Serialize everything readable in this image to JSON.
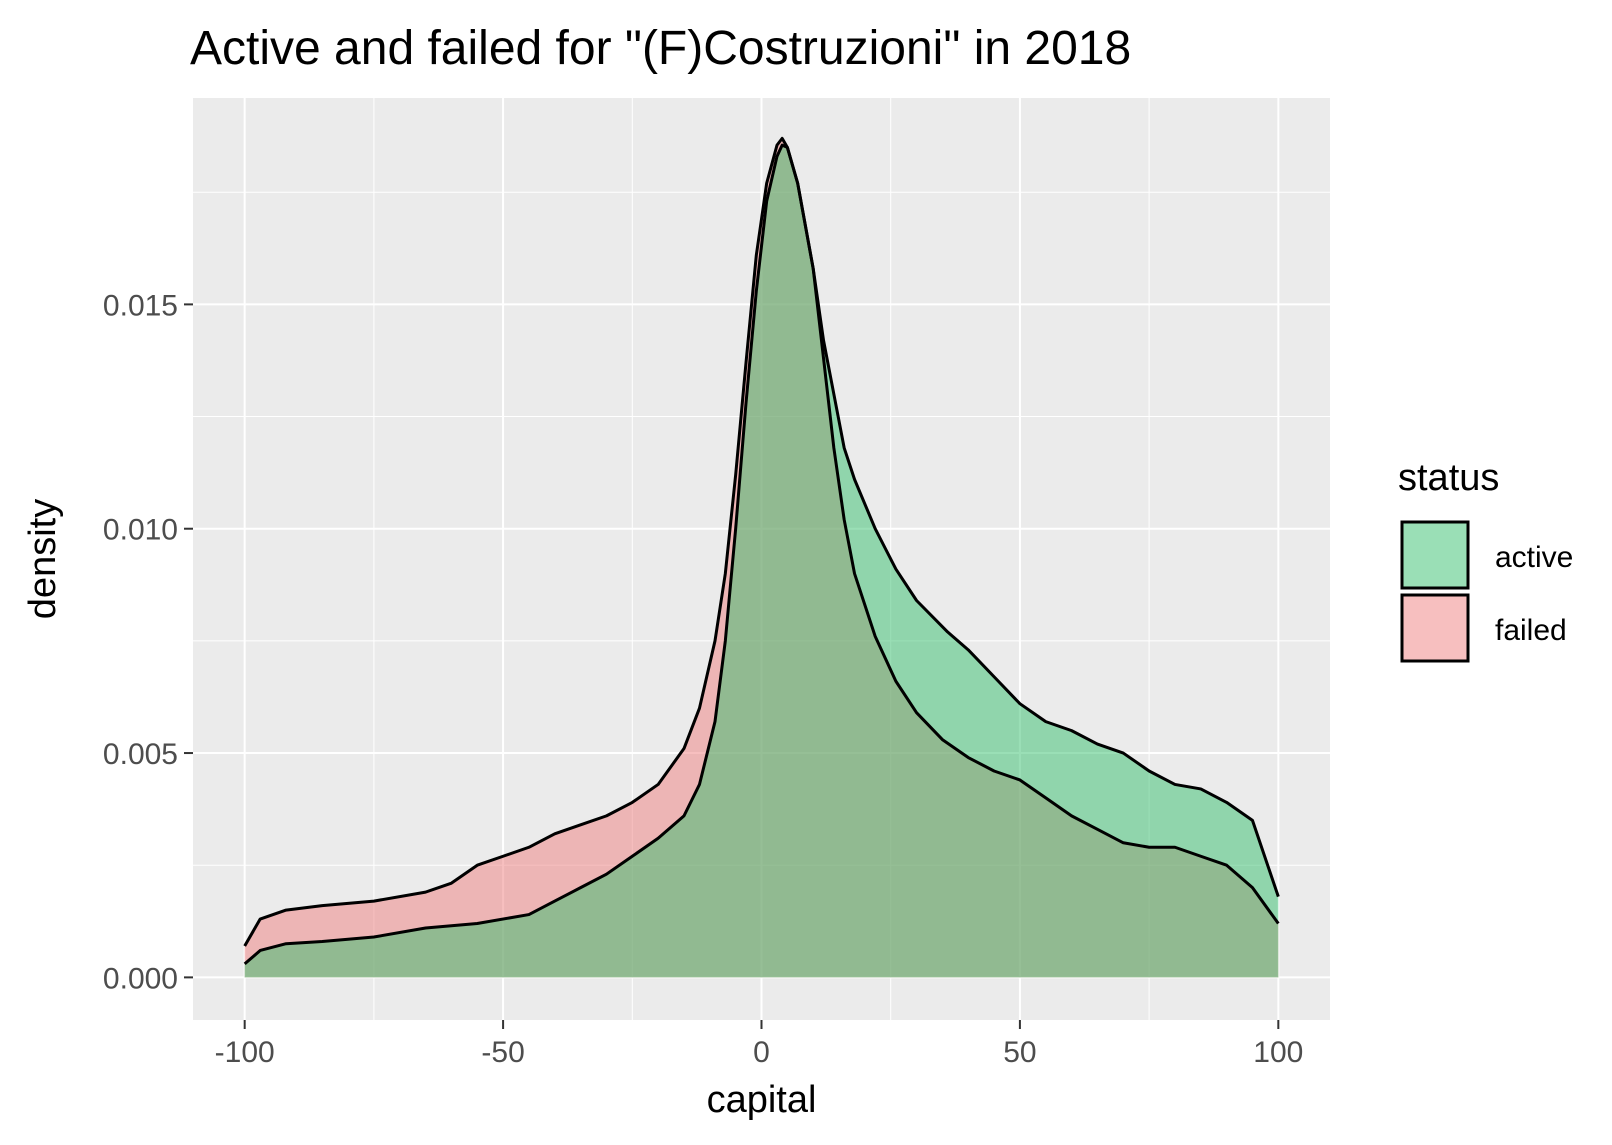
{
  "chart_data": {
    "type": "area",
    "title": "Active and failed for \"(F)Costruzioni\" in 2018",
    "xlabel": "capital",
    "ylabel": "density",
    "xlim": [
      -110,
      110
    ],
    "ylim": [
      -0.00095,
      0.0196
    ],
    "x_ticks": [
      -100,
      -50,
      0,
      50,
      100
    ],
    "x_tick_labels": [
      "-100",
      "-50",
      "0",
      "50",
      "100"
    ],
    "y_ticks": [
      0.0,
      0.005,
      0.01,
      0.015
    ],
    "y_tick_labels": [
      "0.000",
      "0.005",
      "0.010",
      "0.015"
    ],
    "grid": true,
    "legend": {
      "title": "status",
      "position": "right"
    },
    "series": [
      {
        "name": "active",
        "color": "#35C06E",
        "opacity": 0.5,
        "points": [
          [
            -100,
            0.0003
          ],
          [
            -97,
            0.0006
          ],
          [
            -92,
            0.00075
          ],
          [
            -85,
            0.0008
          ],
          [
            -75,
            0.0009
          ],
          [
            -65,
            0.0011
          ],
          [
            -55,
            0.0012
          ],
          [
            -45,
            0.0014
          ],
          [
            -40,
            0.0017
          ],
          [
            -35,
            0.002
          ],
          [
            -30,
            0.0023
          ],
          [
            -25,
            0.0027
          ],
          [
            -20,
            0.0031
          ],
          [
            -15,
            0.0036
          ],
          [
            -12,
            0.0043
          ],
          [
            -9,
            0.0057
          ],
          [
            -7,
            0.0075
          ],
          [
            -5,
            0.01
          ],
          [
            -3,
            0.0128
          ],
          [
            -1,
            0.0153
          ],
          [
            1,
            0.0173
          ],
          [
            3,
            0.0183
          ],
          [
            4,
            0.01855
          ],
          [
            5,
            0.0185
          ],
          [
            7,
            0.0177
          ],
          [
            10,
            0.0158
          ],
          [
            12,
            0.0142
          ],
          [
            14,
            0.013
          ],
          [
            16,
            0.0118
          ],
          [
            18,
            0.0111
          ],
          [
            22,
            0.01
          ],
          [
            26,
            0.0091
          ],
          [
            30,
            0.0084
          ],
          [
            36,
            0.0077
          ],
          [
            40,
            0.0073
          ],
          [
            45,
            0.0067
          ],
          [
            50,
            0.0061
          ],
          [
            55,
            0.0057
          ],
          [
            60,
            0.0055
          ],
          [
            65,
            0.0052
          ],
          [
            70,
            0.005
          ],
          [
            75,
            0.0046
          ],
          [
            80,
            0.0043
          ],
          [
            85,
            0.0042
          ],
          [
            90,
            0.0039
          ],
          [
            95,
            0.0035
          ],
          [
            100,
            0.0018
          ]
        ]
      },
      {
        "name": "failed",
        "color": "#F08080",
        "opacity": 0.5,
        "points": [
          [
            -100,
            0.0007
          ],
          [
            -97,
            0.0013
          ],
          [
            -92,
            0.0015
          ],
          [
            -85,
            0.0016
          ],
          [
            -75,
            0.0017
          ],
          [
            -65,
            0.0019
          ],
          [
            -60,
            0.0021
          ],
          [
            -55,
            0.0025
          ],
          [
            -50,
            0.0027
          ],
          [
            -45,
            0.0029
          ],
          [
            -40,
            0.0032
          ],
          [
            -35,
            0.0034
          ],
          [
            -30,
            0.0036
          ],
          [
            -25,
            0.0039
          ],
          [
            -20,
            0.0043
          ],
          [
            -15,
            0.0051
          ],
          [
            -12,
            0.006
          ],
          [
            -9,
            0.0075
          ],
          [
            -7,
            0.009
          ],
          [
            -5,
            0.0112
          ],
          [
            -3,
            0.0137
          ],
          [
            -1,
            0.0161
          ],
          [
            1,
            0.0177
          ],
          [
            3,
            0.01855
          ],
          [
            4,
            0.0187
          ],
          [
            5,
            0.0185
          ],
          [
            7,
            0.0177
          ],
          [
            10,
            0.0158
          ],
          [
            12,
            0.0138
          ],
          [
            14,
            0.0118
          ],
          [
            16,
            0.0102
          ],
          [
            18,
            0.009
          ],
          [
            22,
            0.0076
          ],
          [
            26,
            0.0066
          ],
          [
            30,
            0.0059
          ],
          [
            35,
            0.0053
          ],
          [
            40,
            0.0049
          ],
          [
            45,
            0.0046
          ],
          [
            50,
            0.0044
          ],
          [
            55,
            0.004
          ],
          [
            60,
            0.0036
          ],
          [
            65,
            0.0033
          ],
          [
            70,
            0.003
          ],
          [
            75,
            0.0029
          ],
          [
            80,
            0.0029
          ],
          [
            85,
            0.0027
          ],
          [
            90,
            0.0025
          ],
          [
            95,
            0.002
          ],
          [
            100,
            0.0012
          ]
        ]
      }
    ]
  }
}
